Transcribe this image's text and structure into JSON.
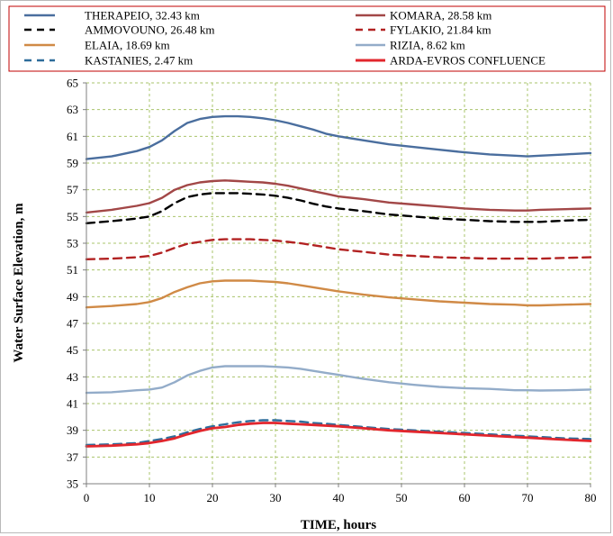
{
  "chart_data": {
    "type": "line",
    "title": "",
    "xlabel": "TIME, hours",
    "ylabel": "Water Surface Elevation, m",
    "xlim": [
      0,
      80
    ],
    "ylim": [
      35,
      65
    ],
    "xticks": [
      0,
      10,
      20,
      30,
      40,
      50,
      60,
      70,
      80
    ],
    "yticks": [
      35,
      37,
      39,
      41,
      43,
      45,
      47,
      49,
      51,
      53,
      55,
      57,
      59,
      61,
      63,
      65
    ],
    "grid": true,
    "legend_position": "top",
    "x": [
      0,
      4,
      8,
      10,
      12,
      14,
      16,
      18,
      20,
      22,
      24,
      26,
      28,
      30,
      32,
      34,
      36,
      38,
      40,
      44,
      48,
      52,
      56,
      60,
      64,
      68,
      70,
      72,
      76,
      80
    ],
    "series": [
      {
        "name": "THERAPEIO, 32.43 km",
        "color": "#4a6e9e",
        "dash": "solid",
        "values": [
          59.3,
          59.5,
          59.9,
          60.2,
          60.7,
          61.4,
          62.0,
          62.3,
          62.45,
          62.5,
          62.5,
          62.45,
          62.35,
          62.2,
          62.0,
          61.75,
          61.5,
          61.2,
          61.0,
          60.7,
          60.4,
          60.2,
          60.0,
          59.8,
          59.65,
          59.55,
          59.5,
          59.55,
          59.65,
          59.75
        ]
      },
      {
        "name": "KOMARA, 28.58 km",
        "color": "#a24747",
        "dash": "solid",
        "values": [
          55.3,
          55.5,
          55.8,
          56.0,
          56.4,
          57.0,
          57.35,
          57.55,
          57.65,
          57.7,
          57.65,
          57.6,
          57.55,
          57.45,
          57.3,
          57.1,
          56.9,
          56.7,
          56.5,
          56.3,
          56.05,
          55.9,
          55.75,
          55.6,
          55.5,
          55.45,
          55.45,
          55.5,
          55.55,
          55.6
        ]
      },
      {
        "name": "AMMOVOUNO, 26.48 km",
        "color": "#000000",
        "dash": "dashed",
        "values": [
          54.5,
          54.65,
          54.85,
          55.0,
          55.4,
          56.0,
          56.45,
          56.65,
          56.75,
          56.75,
          56.75,
          56.7,
          56.65,
          56.55,
          56.4,
          56.2,
          55.95,
          55.75,
          55.6,
          55.4,
          55.15,
          55.0,
          54.85,
          54.75,
          54.65,
          54.6,
          54.6,
          54.6,
          54.7,
          54.75
        ]
      },
      {
        "name": "FYLAKIO, 21.84 km",
        "color": "#b22222",
        "dash": "dashed",
        "values": [
          51.8,
          51.85,
          51.95,
          52.05,
          52.3,
          52.65,
          52.95,
          53.1,
          53.25,
          53.3,
          53.3,
          53.3,
          53.25,
          53.2,
          53.1,
          53.0,
          52.85,
          52.7,
          52.55,
          52.35,
          52.15,
          52.05,
          51.95,
          51.9,
          51.85,
          51.85,
          51.85,
          51.85,
          51.9,
          51.95
        ]
      },
      {
        "name": "ELAIA, 18.69 km",
        "color": "#d08a46",
        "dash": "solid",
        "values": [
          48.2,
          48.3,
          48.45,
          48.6,
          48.9,
          49.35,
          49.7,
          50.0,
          50.15,
          50.2,
          50.2,
          50.2,
          50.15,
          50.1,
          50.0,
          49.85,
          49.7,
          49.55,
          49.4,
          49.15,
          48.95,
          48.8,
          48.65,
          48.55,
          48.45,
          48.4,
          48.35,
          48.35,
          48.4,
          48.45
        ]
      },
      {
        "name": "RIZIA, 8.62 km",
        "color": "#93acc9",
        "dash": "solid",
        "values": [
          41.8,
          41.85,
          42.0,
          42.05,
          42.2,
          42.6,
          43.1,
          43.45,
          43.7,
          43.8,
          43.8,
          43.8,
          43.8,
          43.75,
          43.7,
          43.6,
          43.45,
          43.3,
          43.15,
          42.85,
          42.6,
          42.4,
          42.25,
          42.15,
          42.1,
          42.0,
          42.0,
          41.98,
          42.0,
          42.05
        ]
      },
      {
        "name": "KASTANIES, 2.47 km",
        "color": "#2e6d9b",
        "dash": "dashed",
        "values": [
          37.9,
          37.95,
          38.05,
          38.2,
          38.35,
          38.55,
          38.85,
          39.1,
          39.3,
          39.45,
          39.6,
          39.7,
          39.75,
          39.75,
          39.7,
          39.65,
          39.55,
          39.5,
          39.4,
          39.25,
          39.1,
          39.0,
          38.9,
          38.8,
          38.7,
          38.6,
          38.55,
          38.5,
          38.4,
          38.35
        ]
      },
      {
        "name": "ARDA-EVROS CONFLUENCE",
        "color": "#e2262d",
        "dash": "solid",
        "values": [
          37.8,
          37.85,
          37.95,
          38.05,
          38.2,
          38.4,
          38.7,
          38.95,
          39.15,
          39.25,
          39.4,
          39.5,
          39.55,
          39.55,
          39.5,
          39.45,
          39.4,
          39.35,
          39.3,
          39.15,
          39.0,
          38.9,
          38.8,
          38.7,
          38.6,
          38.5,
          38.45,
          38.4,
          38.3,
          38.2
        ]
      }
    ]
  }
}
